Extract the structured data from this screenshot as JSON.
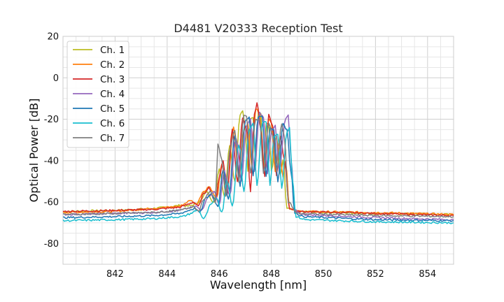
{
  "chart_data": {
    "type": "line",
    "title": "D4481 V20333 Reception Test",
    "xlabel": "Wavelength [nm]",
    "ylabel": "Optical Power [dB]",
    "xlim": [
      840,
      855
    ],
    "ylim": [
      -90,
      20
    ],
    "xticks": [
      842,
      844,
      846,
      848,
      850,
      852,
      854
    ],
    "yticks": [
      20,
      0,
      -20,
      -40,
      -60,
      -80
    ],
    "grid": true,
    "legend_position": "top-left",
    "series": [
      {
        "name": "Ch. 1",
        "color": "#bcbd22",
        "points": [
          [
            840,
            -64.5
          ],
          [
            842,
            -64
          ],
          [
            843.5,
            -63
          ],
          [
            844,
            -62.5
          ],
          [
            844.5,
            -61.5
          ],
          [
            844.8,
            -62
          ],
          [
            845.1,
            -61
          ],
          [
            845.3,
            -59
          ],
          [
            845.5,
            -55
          ],
          [
            845.8,
            -60
          ],
          [
            846.0,
            -44
          ],
          [
            846.2,
            -57
          ],
          [
            846.4,
            -33
          ],
          [
            846.6,
            -50
          ],
          [
            846.8,
            -18
          ],
          [
            846.9,
            -15.5
          ],
          [
            847.0,
            -25
          ],
          [
            847.1,
            -45
          ],
          [
            847.2,
            -20
          ],
          [
            847.3,
            -19
          ],
          [
            847.4,
            -42
          ],
          [
            847.5,
            -16
          ],
          [
            847.6,
            -17
          ],
          [
            847.7,
            -44
          ],
          [
            847.8,
            -22
          ],
          [
            847.9,
            -22
          ],
          [
            848.0,
            -45
          ],
          [
            848.2,
            -28
          ],
          [
            848.35,
            -47
          ],
          [
            848.45,
            -40
          ],
          [
            848.6,
            -63
          ],
          [
            849,
            -64.5
          ],
          [
            852,
            -65.5
          ],
          [
            855,
            -66
          ]
        ]
      },
      {
        "name": "Ch. 2",
        "color": "#ff7f0e",
        "points": [
          [
            840,
            -65
          ],
          [
            842,
            -64.5
          ],
          [
            843.5,
            -63
          ],
          [
            844,
            -62.5
          ],
          [
            844.5,
            -62
          ],
          [
            844.9,
            -59
          ],
          [
            845.1,
            -61
          ],
          [
            845.4,
            -55
          ],
          [
            845.6,
            -52.5
          ],
          [
            845.9,
            -58
          ],
          [
            846.1,
            -42
          ],
          [
            846.3,
            -55
          ],
          [
            846.55,
            -24
          ],
          [
            846.75,
            -48
          ],
          [
            846.95,
            -25
          ],
          [
            847.1,
            -22
          ],
          [
            847.25,
            -43
          ],
          [
            847.4,
            -15
          ],
          [
            847.55,
            -17
          ],
          [
            847.7,
            -44
          ],
          [
            847.9,
            -20
          ],
          [
            848.0,
            -22
          ],
          [
            848.15,
            -45
          ],
          [
            848.3,
            -30
          ],
          [
            848.45,
            -48
          ],
          [
            848.55,
            -40
          ],
          [
            848.7,
            -63
          ],
          [
            849,
            -64.5
          ],
          [
            852,
            -65
          ],
          [
            855,
            -66
          ]
        ]
      },
      {
        "name": "Ch. 3",
        "color": "#d62728",
        "points": [
          [
            840,
            -64.5
          ],
          [
            842,
            -64
          ],
          [
            843.5,
            -63.5
          ],
          [
            844,
            -63
          ],
          [
            844.5,
            -62.5
          ],
          [
            845.0,
            -60
          ],
          [
            845.2,
            -62
          ],
          [
            845.4,
            -56
          ],
          [
            845.6,
            -53
          ],
          [
            845.85,
            -60
          ],
          [
            846.0,
            -48
          ],
          [
            846.15,
            -40
          ],
          [
            846.3,
            -57
          ],
          [
            846.5,
            -25
          ],
          [
            846.7,
            -50
          ],
          [
            846.9,
            -19
          ],
          [
            847.05,
            -25
          ],
          [
            847.2,
            -55
          ],
          [
            847.35,
            -18
          ],
          [
            847.45,
            -12.5
          ],
          [
            847.6,
            -25
          ],
          [
            847.75,
            -48
          ],
          [
            847.9,
            -18
          ],
          [
            848.05,
            -23
          ],
          [
            848.2,
            -47
          ],
          [
            848.35,
            -28
          ],
          [
            848.5,
            -40
          ],
          [
            848.7,
            -63
          ],
          [
            849,
            -64.5
          ],
          [
            852,
            -65.5
          ],
          [
            855,
            -66.5
          ]
        ]
      },
      {
        "name": "Ch. 4",
        "color": "#9467bd",
        "points": [
          [
            840,
            -66
          ],
          [
            842,
            -65.5
          ],
          [
            843.5,
            -65
          ],
          [
            844,
            -64.5
          ],
          [
            844.5,
            -64
          ],
          [
            845.1,
            -62
          ],
          [
            845.3,
            -64
          ],
          [
            845.6,
            -57
          ],
          [
            845.8,
            -55
          ],
          [
            846.0,
            -61
          ],
          [
            846.2,
            -45
          ],
          [
            846.4,
            -57
          ],
          [
            846.65,
            -29
          ],
          [
            846.85,
            -50
          ],
          [
            847.05,
            -23
          ],
          [
            847.2,
            -20
          ],
          [
            847.35,
            -45
          ],
          [
            847.55,
            -17
          ],
          [
            847.7,
            -19
          ],
          [
            847.85,
            -46
          ],
          [
            848.0,
            -26
          ],
          [
            848.15,
            -23
          ],
          [
            848.3,
            -45
          ],
          [
            848.55,
            -20
          ],
          [
            848.65,
            -18
          ],
          [
            848.75,
            -38
          ],
          [
            848.9,
            -64
          ],
          [
            849.2,
            -66
          ],
          [
            852,
            -67.5
          ],
          [
            855,
            -68.5
          ]
        ]
      },
      {
        "name": "Ch. 5",
        "color": "#1f77b4",
        "points": [
          [
            840,
            -67.5
          ],
          [
            842,
            -67
          ],
          [
            843.5,
            -66.5
          ],
          [
            844,
            -66
          ],
          [
            844.5,
            -65.5
          ],
          [
            845.05,
            -63
          ],
          [
            845.25,
            -65
          ],
          [
            845.5,
            -58
          ],
          [
            845.7,
            -56
          ],
          [
            845.95,
            -62
          ],
          [
            846.15,
            -44
          ],
          [
            846.35,
            -59
          ],
          [
            846.6,
            -28
          ],
          [
            846.8,
            -52
          ],
          [
            847.0,
            -21
          ],
          [
            847.15,
            -19
          ],
          [
            847.3,
            -47
          ],
          [
            847.5,
            -19
          ],
          [
            847.65,
            -18.5
          ],
          [
            847.8,
            -48
          ],
          [
            847.95,
            -24
          ],
          [
            848.1,
            -25
          ],
          [
            848.25,
            -50
          ],
          [
            848.45,
            -22
          ],
          [
            848.6,
            -25
          ],
          [
            848.75,
            -45
          ],
          [
            848.9,
            -65
          ],
          [
            849.2,
            -67
          ],
          [
            852,
            -68.5
          ],
          [
            855,
            -69
          ]
        ]
      },
      {
        "name": "Ch. 6",
        "color": "#17becf",
        "points": [
          [
            840,
            -69
          ],
          [
            842,
            -68.5
          ],
          [
            843.5,
            -68
          ],
          [
            844,
            -67.5
          ],
          [
            844.6,
            -67
          ],
          [
            845.2,
            -64
          ],
          [
            845.4,
            -68
          ],
          [
            845.7,
            -61
          ],
          [
            845.9,
            -58
          ],
          [
            846.1,
            -65
          ],
          [
            846.3,
            -49
          ],
          [
            846.5,
            -62
          ],
          [
            846.75,
            -32
          ],
          [
            846.95,
            -55
          ],
          [
            847.15,
            -25
          ],
          [
            847.3,
            -22
          ],
          [
            847.45,
            -52
          ],
          [
            847.65,
            -22
          ],
          [
            847.8,
            -21
          ],
          [
            847.95,
            -52
          ],
          [
            848.1,
            -28
          ],
          [
            848.25,
            -27
          ],
          [
            848.4,
            -53
          ],
          [
            848.6,
            -26
          ],
          [
            848.7,
            -24
          ],
          [
            848.8,
            -48
          ],
          [
            848.95,
            -67
          ],
          [
            849.3,
            -68.5
          ],
          [
            852,
            -69.5
          ],
          [
            855,
            -70
          ]
        ]
      },
      {
        "name": "Ch. 7",
        "color": "#7f7f7f",
        "points": [
          [
            840,
            -66
          ],
          [
            842,
            -65.5
          ],
          [
            843.5,
            -65
          ],
          [
            844,
            -64.5
          ],
          [
            844.5,
            -64
          ],
          [
            845.0,
            -62
          ],
          [
            845.2,
            -64
          ],
          [
            845.45,
            -58
          ],
          [
            845.65,
            -55
          ],
          [
            845.85,
            -60
          ],
          [
            845.95,
            -32
          ],
          [
            846.1,
            -40
          ],
          [
            846.25,
            -57
          ],
          [
            846.4,
            -35
          ],
          [
            846.6,
            -25
          ],
          [
            846.75,
            -50
          ],
          [
            846.95,
            -18
          ],
          [
            847.05,
            -19
          ],
          [
            847.2,
            -46
          ],
          [
            847.4,
            -20
          ],
          [
            847.55,
            -20
          ],
          [
            847.7,
            -46
          ],
          [
            847.9,
            -22
          ],
          [
            848.05,
            -28
          ],
          [
            848.2,
            -45
          ],
          [
            848.4,
            -22
          ],
          [
            848.5,
            -28
          ],
          [
            848.65,
            -60
          ],
          [
            849,
            -65.5
          ],
          [
            852,
            -66.5
          ],
          [
            855,
            -67
          ]
        ]
      }
    ]
  }
}
